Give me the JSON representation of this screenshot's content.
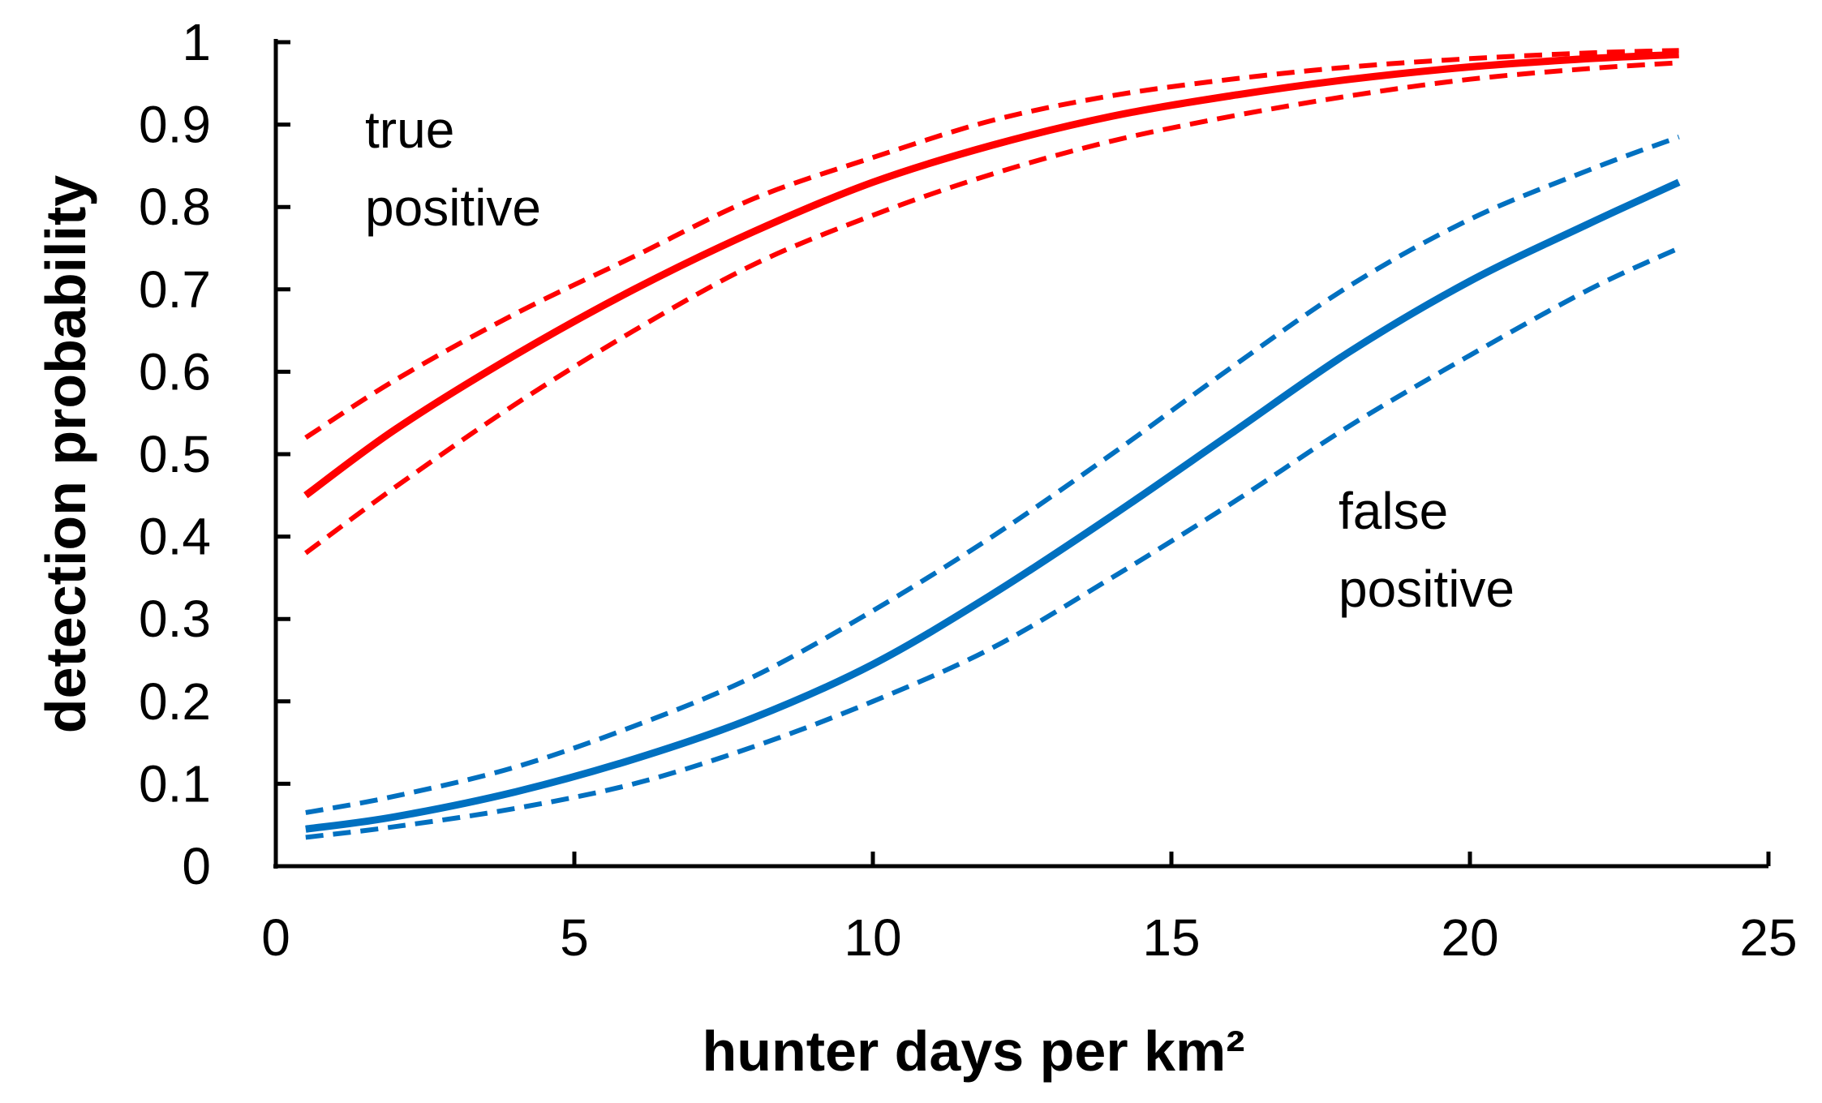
{
  "chart_data": {
    "type": "line",
    "xlabel": "hunter days per km²",
    "ylabel": "detection probability",
    "xlim": [
      0,
      25
    ],
    "ylim": [
      0,
      1
    ],
    "xticks": [
      0,
      5,
      10,
      15,
      20,
      25
    ],
    "yticks": [
      0,
      0.1,
      0.2,
      0.3,
      0.4,
      0.5,
      0.6,
      0.7,
      0.8,
      0.9,
      1
    ],
    "ytick_labels": [
      "0",
      "0.1",
      "0.2",
      "0.3",
      "0.4",
      "0.5",
      "0.6",
      "0.7",
      "0.8",
      "0.9",
      "1"
    ],
    "grid": false,
    "annotations": [
      {
        "id": "tp",
        "lines": [
          "true",
          "positive"
        ]
      },
      {
        "id": "fp",
        "lines": [
          "false",
          "positive"
        ]
      }
    ],
    "series": [
      {
        "group": "true positive",
        "style": "solid",
        "color": "#ff0000",
        "x": [
          0.5,
          2,
          4,
          6,
          8,
          10,
          12,
          14,
          16,
          18,
          20,
          22,
          23.5
        ],
        "y": [
          0.45,
          0.53,
          0.62,
          0.7,
          0.77,
          0.83,
          0.875,
          0.91,
          0.935,
          0.955,
          0.97,
          0.98,
          0.985
        ]
      },
      {
        "group": "true positive",
        "style": "dashed",
        "color": "#ff0000",
        "x": [
          0.5,
          2,
          4,
          6,
          8,
          10,
          12,
          14,
          16,
          18,
          20,
          22,
          23.5
        ],
        "y": [
          0.52,
          0.59,
          0.67,
          0.74,
          0.81,
          0.86,
          0.905,
          0.935,
          0.955,
          0.97,
          0.98,
          0.987,
          0.99
        ]
      },
      {
        "group": "true positive",
        "style": "dashed",
        "color": "#ff0000",
        "x": [
          0.5,
          2,
          4,
          6,
          8,
          10,
          12,
          14,
          16,
          18,
          20,
          22,
          23.5
        ],
        "y": [
          0.38,
          0.46,
          0.56,
          0.65,
          0.73,
          0.79,
          0.84,
          0.88,
          0.91,
          0.935,
          0.955,
          0.968,
          0.975
        ]
      },
      {
        "group": "false positive",
        "style": "solid",
        "color": "#0070c0",
        "x": [
          0.5,
          2,
          4,
          6,
          8,
          10,
          12,
          14,
          16,
          18,
          20,
          22,
          23.5
        ],
        "y": [
          0.045,
          0.06,
          0.09,
          0.13,
          0.18,
          0.245,
          0.33,
          0.425,
          0.525,
          0.625,
          0.71,
          0.78,
          0.83
        ]
      },
      {
        "group": "false positive",
        "style": "dashed",
        "color": "#0070c0",
        "x": [
          0.5,
          2,
          4,
          6,
          8,
          10,
          12,
          14,
          16,
          18,
          20,
          22,
          23.5
        ],
        "y": [
          0.065,
          0.085,
          0.12,
          0.17,
          0.23,
          0.31,
          0.4,
          0.5,
          0.605,
          0.705,
          0.785,
          0.845,
          0.885
        ]
      },
      {
        "group": "false positive",
        "style": "dashed",
        "color": "#0070c0",
        "x": [
          0.5,
          2,
          4,
          6,
          8,
          10,
          12,
          14,
          16,
          18,
          20,
          22,
          23.5
        ],
        "y": [
          0.035,
          0.048,
          0.07,
          0.1,
          0.145,
          0.2,
          0.265,
          0.35,
          0.44,
          0.535,
          0.62,
          0.7,
          0.75
        ]
      }
    ]
  }
}
